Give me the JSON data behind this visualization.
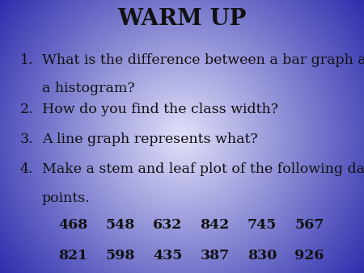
{
  "title": "WARM UP",
  "title_fontsize": 20,
  "title_fontweight": "bold",
  "q1_line1": "What is the difference between a bar graph and",
  "q1_line2": "a histogram?",
  "q2": "How do you find the class width?",
  "q3": "A line graph represents what?",
  "q4_line1": "Make a stem and leaf plot of the following data",
  "q4_line2": "points.",
  "data_row1": [
    "468",
    "548",
    "632",
    "842",
    "745",
    "567"
  ],
  "data_row2": [
    "821",
    "598",
    "435",
    "387",
    "830",
    "926"
  ],
  "text_color": "#111111",
  "question_fontsize": 12.5,
  "data_fontsize": 12.5
}
